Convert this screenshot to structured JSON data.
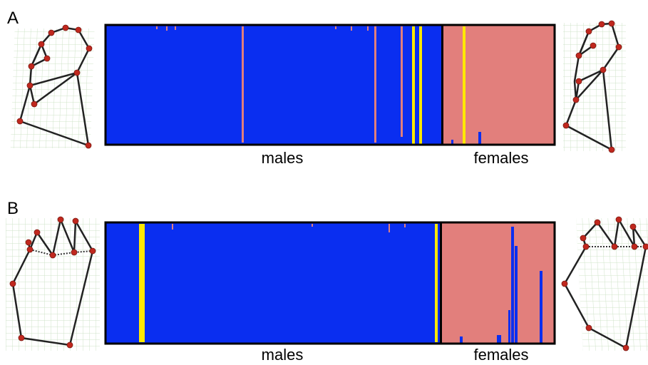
{
  "panels": [
    {
      "label": "A",
      "groups": [
        "males",
        "females"
      ]
    },
    {
      "label": "B",
      "groups": [
        "males",
        "females"
      ]
    }
  ]
}
